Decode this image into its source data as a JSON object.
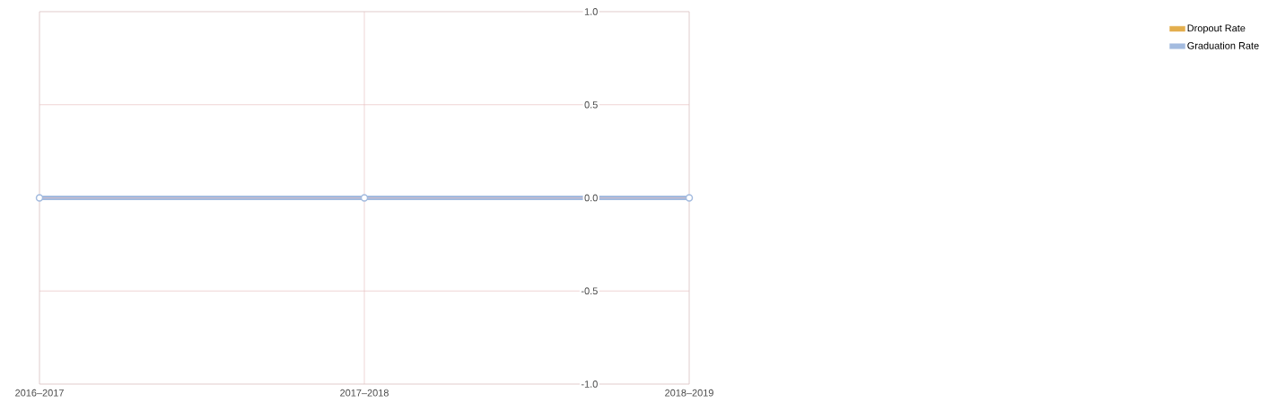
{
  "chart_data": {
    "type": "line",
    "categories": [
      "2016–2017",
      "2017–2018",
      "2018–2019"
    ],
    "series": [
      {
        "name": "Dropout Rate",
        "color": "#e3ae4c",
        "values": [
          null,
          null,
          null
        ]
      },
      {
        "name": "Graduation Rate",
        "color": "#a3bbdf",
        "values": [
          0,
          0,
          0
        ]
      }
    ],
    "ylim": [
      -1,
      1
    ],
    "yticks": [
      {
        "value": -1,
        "label": "-1.0"
      },
      {
        "value": -0.5,
        "label": "-0.5"
      },
      {
        "value": 0,
        "label": "0.0"
      },
      {
        "value": 0.5,
        "label": "0.5"
      },
      {
        "value": 1,
        "label": "1.0"
      }
    ],
    "grid": true,
    "legend": "top right",
    "marker": "circle",
    "line_style": "solid"
  }
}
